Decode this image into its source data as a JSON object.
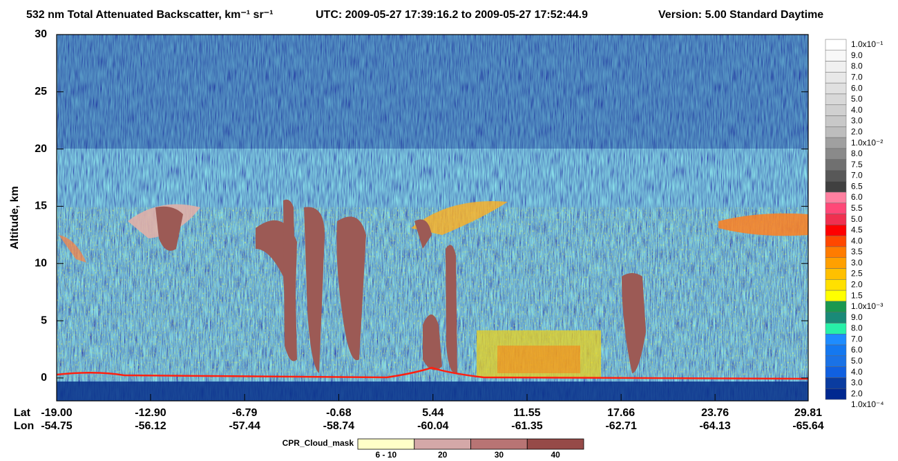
{
  "chart_data": {
    "type": "heatmap",
    "title": "532 nm Total Attenuated Backscatter, km⁻¹ sr⁻¹",
    "subtitle": "UTC:  2009-05-27 17:39:16.2  to  2009-05-27 17:52:44.9",
    "version": "Version: 5.00  Standard  Daytime",
    "y_label": "Altitude, km",
    "ylim": [
      -2,
      30
    ],
    "yticks": [
      0,
      5,
      10,
      15,
      20,
      25,
      30
    ],
    "x_row_label": "Lat",
    "lon_row_label": "Lon",
    "xlim": [
      -19.0,
      29.81
    ],
    "xticks": [
      {
        "value": -19.0,
        "label": "-19.00"
      },
      {
        "value": -12.9,
        "label": "-12.90"
      },
      {
        "value": -6.79,
        "label": "-6.79"
      },
      {
        "value": -0.68,
        "label": "-0.68"
      },
      {
        "value": 5.44,
        "label": "5.44"
      },
      {
        "value": 11.55,
        "label": "11.55"
      },
      {
        "value": 17.66,
        "label": "17.66"
      },
      {
        "value": 23.76,
        "label": "23.76"
      },
      {
        "value": 29.81,
        "label": "29.81"
      }
    ],
    "lon_labels": [
      "-54.75",
      "-56.12",
      "-57.44",
      "-58.74",
      "-60.04",
      "-61.35",
      "-62.71",
      "-64.13",
      "-65.64"
    ],
    "colorbar": {
      "labels": [
        "1.0x10⁻¹",
        "9.0",
        "8.0",
        "7.0",
        "6.0",
        "5.0",
        "4.0",
        "3.0",
        "2.0",
        "1.0x10⁻²",
        "8.0",
        "7.5",
        "7.0",
        "6.5",
        "6.0",
        "5.5",
        "5.0",
        "4.5",
        "4.0",
        "3.5",
        "3.0",
        "2.5",
        "2.0",
        "1.5",
        "1.0x10⁻³",
        "9.0",
        "8.0",
        "7.0",
        "6.0",
        "5.0",
        "4.0",
        "3.0",
        "2.0",
        "1.0x10⁻⁴"
      ],
      "colors": [
        "#ffffff",
        "#f8f8f8",
        "#f0f0f0",
        "#e8e8e8",
        "#e0e0e0",
        "#d8d8d8",
        "#d0d0d0",
        "#c8c8c8",
        "#bdbdbd",
        "#a0a0a0",
        "#8a8a8a",
        "#707070",
        "#585858",
        "#404040",
        "#ff80a0",
        "#ff4878",
        "#f03050",
        "#ff0000",
        "#ff4800",
        "#ff7c00",
        "#ffa000",
        "#ffc000",
        "#ffe000",
        "#ffff00",
        "#1a9850",
        "#1a8a78",
        "#28f0a8",
        "#1e8cff",
        "#1478f0",
        "#1a72e6",
        "#1060e0",
        "#0a3ca0",
        "#002890"
      ]
    },
    "cpr_legend": {
      "title": "CPR_Cloud_mask",
      "labels": [
        "6 - 10",
        "20",
        "30",
        "40"
      ],
      "colors": [
        "#ffffc8",
        "#d4a8a8",
        "#b87474",
        "#964a48"
      ]
    }
  }
}
